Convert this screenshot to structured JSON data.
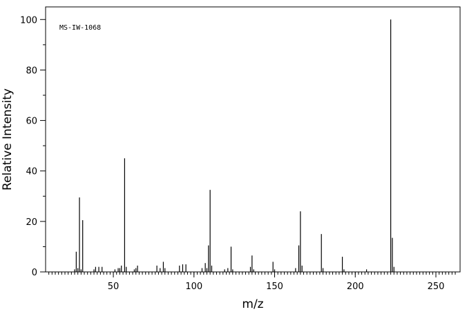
{
  "chart_data": {
    "type": "bar",
    "title": "",
    "annotation": "MS-IW-1068",
    "xlabel": "m/z",
    "ylabel": "Relative Intensity",
    "xlim": [
      8,
      265
    ],
    "ylim": [
      0,
      105
    ],
    "xticks": [
      50,
      100,
      150,
      200,
      250
    ],
    "yticks": [
      0,
      20,
      40,
      60,
      80,
      100
    ],
    "grid": false,
    "legend": "none",
    "bar_color": "#000000",
    "peaks": [
      {
        "x": 26,
        "y": 1.0
      },
      {
        "x": 27,
        "y": 8.0
      },
      {
        "x": 28,
        "y": 1.5
      },
      {
        "x": 29,
        "y": 29.5
      },
      {
        "x": 30,
        "y": 1.0
      },
      {
        "x": 31,
        "y": 20.5
      },
      {
        "x": 38,
        "y": 1.0
      },
      {
        "x": 39,
        "y": 2.0
      },
      {
        "x": 41,
        "y": 2.0
      },
      {
        "x": 43,
        "y": 2.0
      },
      {
        "x": 51,
        "y": 1.0
      },
      {
        "x": 53,
        "y": 1.5
      },
      {
        "x": 54,
        "y": 1.5
      },
      {
        "x": 55,
        "y": 2.5
      },
      {
        "x": 57,
        "y": 45.0
      },
      {
        "x": 58,
        "y": 2.0
      },
      {
        "x": 63,
        "y": 1.0
      },
      {
        "x": 64,
        "y": 1.5
      },
      {
        "x": 65,
        "y": 2.5
      },
      {
        "x": 77,
        "y": 2.5
      },
      {
        "x": 79,
        "y": 1.5
      },
      {
        "x": 81,
        "y": 4.0
      },
      {
        "x": 82,
        "y": 1.5
      },
      {
        "x": 91,
        "y": 2.5
      },
      {
        "x": 93,
        "y": 3.0
      },
      {
        "x": 95,
        "y": 3.0
      },
      {
        "x": 105,
        "y": 1.5
      },
      {
        "x": 107,
        "y": 3.5
      },
      {
        "x": 108,
        "y": 1.5
      },
      {
        "x": 109,
        "y": 10.5
      },
      {
        "x": 110,
        "y": 32.5
      },
      {
        "x": 111,
        "y": 2.5
      },
      {
        "x": 119,
        "y": 1.0
      },
      {
        "x": 121,
        "y": 1.5
      },
      {
        "x": 123,
        "y": 10.0
      },
      {
        "x": 124,
        "y": 1.0
      },
      {
        "x": 135,
        "y": 2.0
      },
      {
        "x": 136,
        "y": 6.5
      },
      {
        "x": 137,
        "y": 1.0
      },
      {
        "x": 149,
        "y": 4.0
      },
      {
        "x": 150,
        "y": 1.0
      },
      {
        "x": 163,
        "y": 1.5
      },
      {
        "x": 165,
        "y": 10.5
      },
      {
        "x": 166,
        "y": 24.0
      },
      {
        "x": 167,
        "y": 2.5
      },
      {
        "x": 179,
        "y": 15.0
      },
      {
        "x": 180,
        "y": 1.5
      },
      {
        "x": 192,
        "y": 6.0
      },
      {
        "x": 193,
        "y": 1.0
      },
      {
        "x": 207,
        "y": 1.0
      },
      {
        "x": 222,
        "y": 100.0
      },
      {
        "x": 223,
        "y": 13.5
      },
      {
        "x": 224,
        "y": 2.0
      }
    ]
  }
}
